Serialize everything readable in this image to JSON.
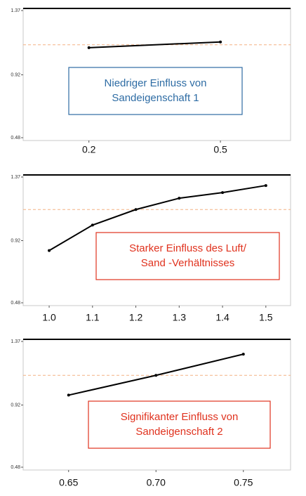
{
  "chart_data": [
    {
      "type": "line",
      "x": [
        0.2,
        0.5
      ],
      "values": [
        1.11,
        1.15
      ],
      "color": "#000000",
      "xlim": [
        0.05,
        0.66
      ],
      "xticks": [
        0.2,
        0.5
      ],
      "ylim": [
        0.48,
        1.37
      ],
      "yticks": [
        0.48,
        0.92,
        1.37
      ],
      "reference_line": 1.13,
      "reference_color": "#f4b183",
      "annotation": {
        "lines": [
          "Niedriger Einfluss von",
          "Sandeigenschaft 1"
        ],
        "color": "#2e6ca4"
      }
    },
    {
      "type": "line",
      "x": [
        1.0,
        1.1,
        1.2,
        1.3,
        1.4,
        1.5
      ],
      "values": [
        0.85,
        1.03,
        1.14,
        1.22,
        1.26,
        1.31
      ],
      "color": "#000000",
      "xlim": [
        0.94,
        1.557
      ],
      "xticks": [
        {
          "value": 1.0,
          "label": "1.0"
        },
        1.1,
        1.2,
        1.3,
        1.4,
        1.5
      ],
      "ylim": [
        0.48,
        1.37
      ],
      "yticks": [
        0.48,
        0.92,
        1.37
      ],
      "reference_line": 1.14,
      "reference_color": "#f4b183",
      "annotation": {
        "lines": [
          "Starker Einfluss des Luft/",
          "Sand -Verhältnisses"
        ],
        "color": "#e0321e"
      }
    },
    {
      "type": "line",
      "x": [
        0.65,
        0.7,
        0.75
      ],
      "values": [
        0.99,
        1.13,
        1.28
      ],
      "color": "#000000",
      "xlim": [
        0.624,
        0.777
      ],
      "xticks": [
        0.65,
        {
          "value": 0.7,
          "label": "0.70"
        },
        0.75
      ],
      "ylim": [
        0.48,
        1.37
      ],
      "yticks": [
        0.48,
        0.92,
        1.37
      ],
      "reference_line": 1.13,
      "reference_color": "#f4b183",
      "annotation": {
        "lines": [
          "Signifikanter Einfluss von",
          "Sandeigenschaft 2"
        ],
        "color": "#e0321e"
      }
    }
  ]
}
